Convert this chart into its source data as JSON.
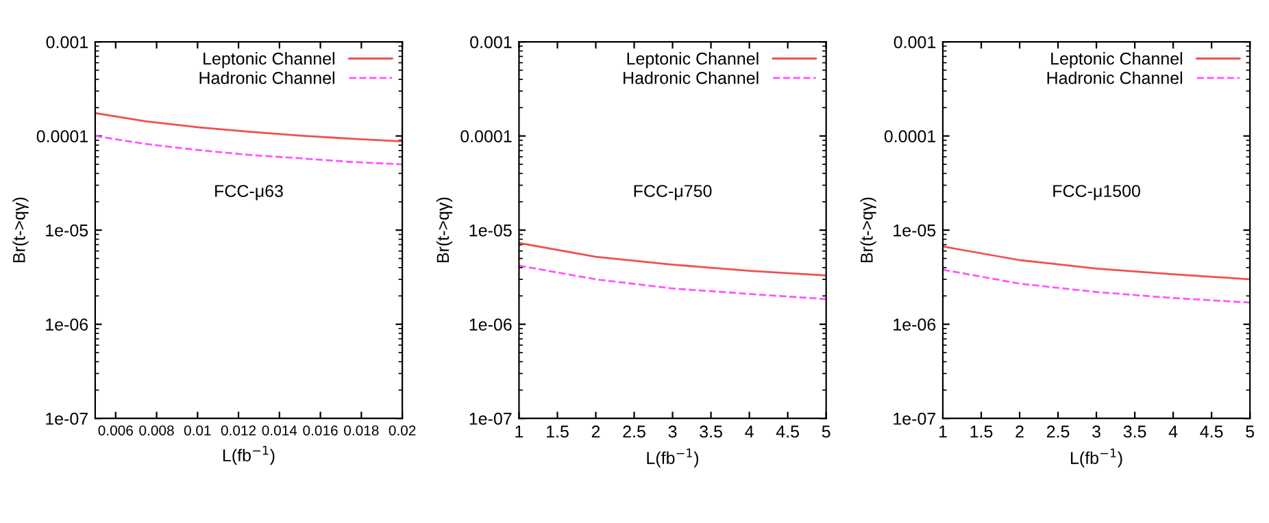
{
  "chart_data": [
    {
      "type": "line",
      "xlabel": "L(fb$^{−1}$)",
      "ylabel": "Br(t->qγ)",
      "annotations": [
        "FCC-μ63"
      ],
      "log": "y",
      "legend": "top right",
      "grid": false,
      "xlim": [
        0.005,
        0.02
      ],
      "xticks": [
        0.006,
        0.008,
        0.01,
        0.012,
        0.014,
        0.016,
        0.018,
        0.02
      ],
      "ylim": [
        1e-07,
        0.001
      ],
      "yticks": [
        {
          "value": 1e-07,
          "label": "1e-07"
        },
        {
          "value": 1e-06,
          "label": "1e-06"
        },
        {
          "value": 1e-05,
          "label": "1e-05"
        },
        {
          "value": 0.0001,
          "label": "0.0001"
        },
        {
          "value": 0.001,
          "label": "0.001"
        }
      ],
      "x": [
        0.005,
        0.0075,
        0.01,
        0.0125,
        0.015,
        0.0175,
        0.02
      ],
      "series": [
        {
          "name": "Leptonic Channel",
          "color": "#f05050",
          "line_style": "solid",
          "values": [
            0.000175,
            0.000143,
            0.000124,
            0.000111,
            0.000101,
            9.35e-05,
            8.75e-05
          ]
        },
        {
          "name": "Hadronic Channel",
          "color": "#ff55ff",
          "line_style": "dashed",
          "values": [
            0.0001,
            8.2e-05,
            7.1e-05,
            6.3e-05,
            5.8e-05,
            5.3e-05,
            5e-05
          ]
        }
      ]
    },
    {
      "type": "line",
      "xlabel": "L(fb$^{−1}$)",
      "ylabel": "Br(t->qγ)",
      "annotations": [
        "FCC-μ750"
      ],
      "log": "y",
      "legend": "top right",
      "grid": false,
      "xlim": [
        1,
        5
      ],
      "xticks": [
        1,
        1.5,
        2,
        2.5,
        3,
        3.5,
        4,
        4.5,
        5
      ],
      "ylim": [
        1e-07,
        0.001
      ],
      "yticks": [
        {
          "value": 1e-07,
          "label": "1e-07"
        },
        {
          "value": 1e-06,
          "label": "1e-06"
        },
        {
          "value": 1e-05,
          "label": "1e-05"
        },
        {
          "value": 0.0001,
          "label": "0.0001"
        },
        {
          "value": 0.001,
          "label": "0.001"
        }
      ],
      "x": [
        1,
        2,
        3,
        4,
        5
      ],
      "series": [
        {
          "name": "Leptonic Channel",
          "color": "#f05050",
          "line_style": "solid",
          "values": [
            7.3e-06,
            5.2e-06,
            4.3e-06,
            3.7e-06,
            3.3e-06
          ]
        },
        {
          "name": "Hadronic Channel",
          "color": "#ff55ff",
          "line_style": "dashed",
          "values": [
            4.2e-06,
            3e-06,
            2.4e-06,
            2.1e-06,
            1.85e-06
          ]
        }
      ]
    },
    {
      "type": "line",
      "xlabel": "L(fb$^{−1}$)",
      "ylabel": "Br(t->qγ)",
      "annotations": [
        "FCC-μ1500"
      ],
      "log": "y",
      "legend": "top right",
      "grid": false,
      "xlim": [
        1,
        5
      ],
      "xticks": [
        1,
        1.5,
        2,
        2.5,
        3,
        3.5,
        4,
        4.5,
        5
      ],
      "ylim": [
        1e-07,
        0.001
      ],
      "yticks": [
        {
          "value": 1e-07,
          "label": "1e-07"
        },
        {
          "value": 1e-06,
          "label": "1e-06"
        },
        {
          "value": 1e-05,
          "label": "1e-05"
        },
        {
          "value": 0.0001,
          "label": "0.0001"
        },
        {
          "value": 0.001,
          "label": "0.001"
        }
      ],
      "x": [
        1,
        2,
        3,
        4,
        5
      ],
      "series": [
        {
          "name": "Leptonic Channel",
          "color": "#f05050",
          "line_style": "solid",
          "values": [
            6.7e-06,
            4.8e-06,
            3.9e-06,
            3.4e-06,
            3e-06
          ]
        },
        {
          "name": "Hadronic Channel",
          "color": "#ff55ff",
          "line_style": "dashed",
          "values": [
            3.8e-06,
            2.7e-06,
            2.2e-06,
            1.9e-06,
            1.7e-06
          ]
        }
      ]
    }
  ]
}
